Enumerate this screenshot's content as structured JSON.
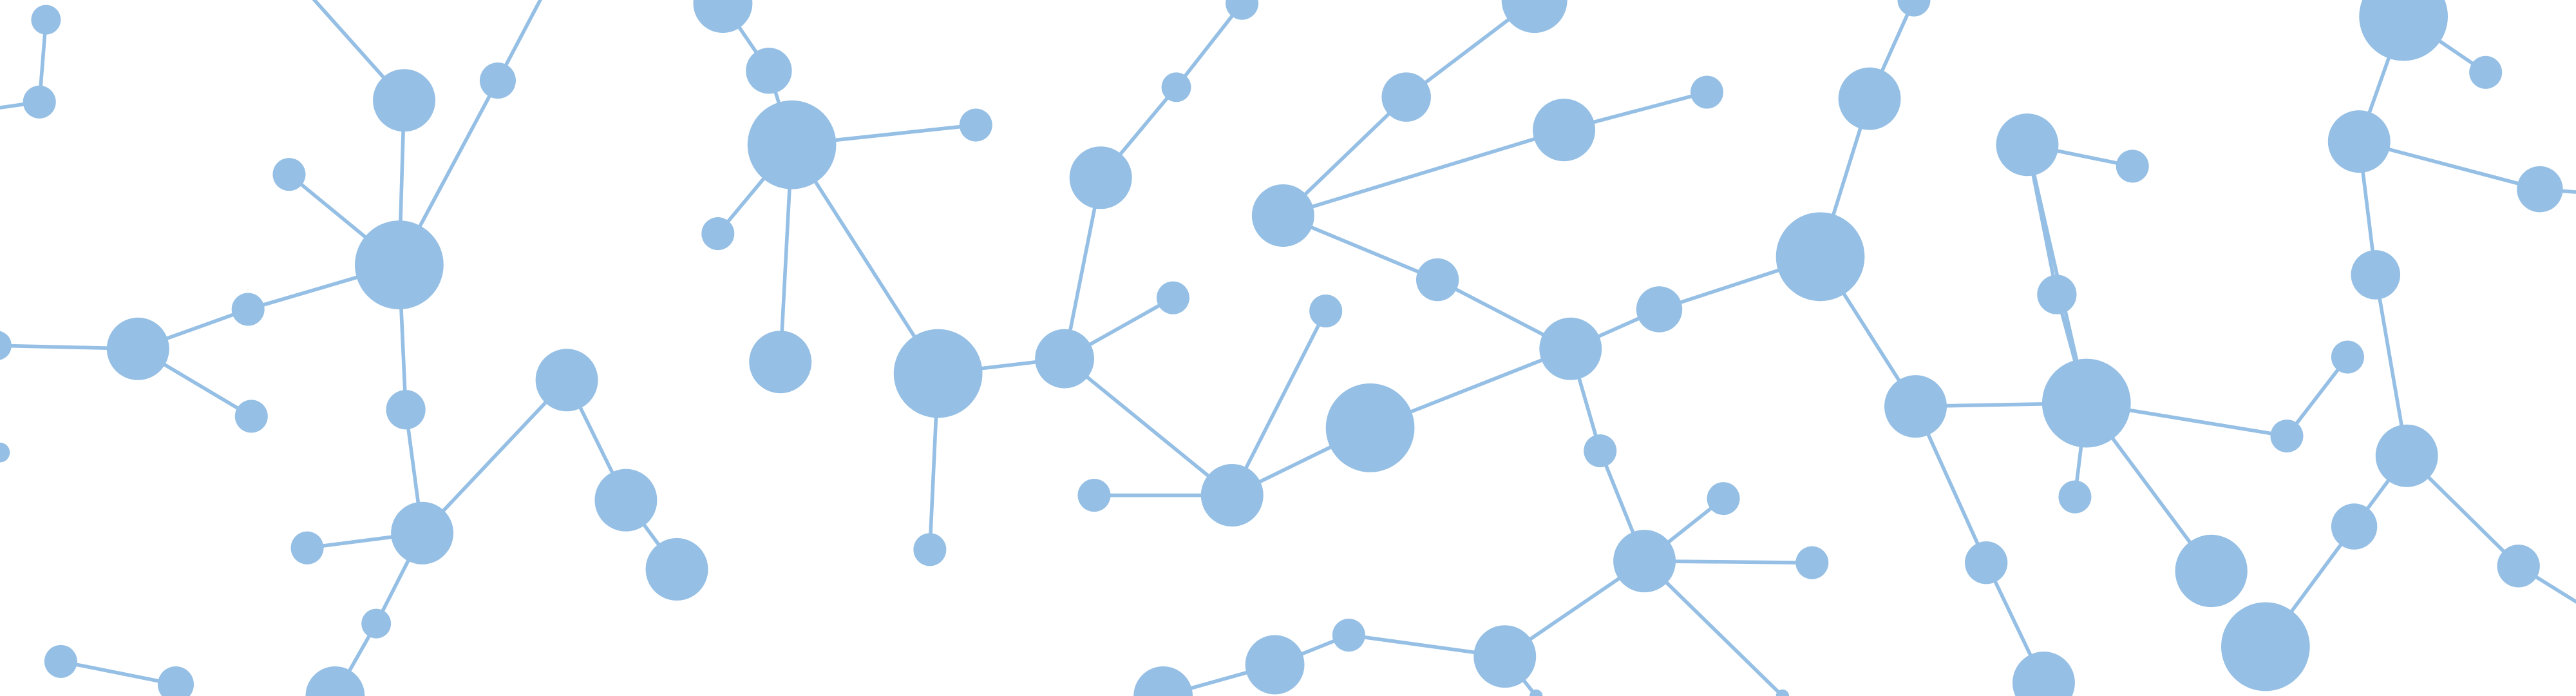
{
  "graphic": {
    "subject": "molecule-network-banner",
    "node_color": "#95bfe4",
    "edge_color": "#95bfe4",
    "background": "#ffffff"
  }
}
